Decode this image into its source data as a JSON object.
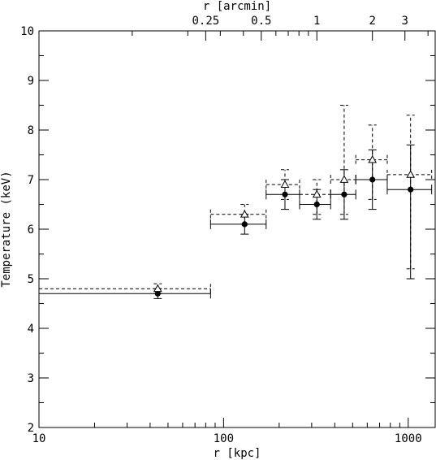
{
  "chart_data": {
    "type": "scatter",
    "title": "",
    "xlabel": "r [kpc]",
    "ylabel": "Temperature (keV)",
    "x2label": "r [arcmin]",
    "xscale": "log",
    "xlim": [
      10,
      1400
    ],
    "ylim": [
      2,
      10
    ],
    "grid": false,
    "x_major_ticks": [
      10,
      100,
      1000
    ],
    "x_major_tick_labels": [
      "10",
      "100",
      "1000"
    ],
    "y_ticks": [
      2,
      3,
      4,
      5,
      6,
      7,
      8,
      9,
      10
    ],
    "y_tick_labels": [
      "2",
      "3",
      "4",
      "5",
      "6",
      "7",
      "8",
      "9",
      "10"
    ],
    "x2_tick_labels": [
      "0.25",
      "0.5",
      "1",
      "2",
      "3"
    ],
    "x2_tick_values_arcmin": [
      0.25,
      0.5,
      1,
      2,
      3
    ],
    "series": [
      {
        "marker": "filled-circle",
        "linestyle": "solid",
        "points": [
          {
            "x": 44,
            "x_lo": 10,
            "x_hi": 85,
            "y": 4.7,
            "y_lo": 4.6,
            "y_hi": 4.8
          },
          {
            "x": 130,
            "x_lo": 85,
            "x_hi": 170,
            "y": 6.1,
            "y_lo": 5.9,
            "y_hi": 6.3
          },
          {
            "x": 215,
            "x_lo": 170,
            "x_hi": 258,
            "y": 6.7,
            "y_lo": 6.4,
            "y_hi": 7.0
          },
          {
            "x": 320,
            "x_lo": 258,
            "x_hi": 380,
            "y": 6.5,
            "y_lo": 6.2,
            "y_hi": 6.8
          },
          {
            "x": 450,
            "x_lo": 380,
            "x_hi": 520,
            "y": 6.7,
            "y_lo": 6.2,
            "y_hi": 7.2
          },
          {
            "x": 640,
            "x_lo": 520,
            "x_hi": 770,
            "y": 7.0,
            "y_lo": 6.4,
            "y_hi": 7.6
          },
          {
            "x": 1030,
            "x_lo": 770,
            "x_hi": 1340,
            "y": 6.8,
            "y_lo": 5.0,
            "y_hi": 7.7
          }
        ]
      },
      {
        "marker": "open-triangle",
        "linestyle": "dashed",
        "points": [
          {
            "x": 44,
            "x_lo": 10,
            "x_hi": 85,
            "y": 4.8,
            "y_lo": 4.7,
            "y_hi": 4.9
          },
          {
            "x": 130,
            "x_lo": 85,
            "x_hi": 170,
            "y": 6.3,
            "y_lo": 6.1,
            "y_hi": 6.5
          },
          {
            "x": 215,
            "x_lo": 170,
            "x_hi": 258,
            "y": 6.9,
            "y_lo": 6.6,
            "y_hi": 7.2
          },
          {
            "x": 320,
            "x_lo": 258,
            "x_hi": 380,
            "y": 6.7,
            "y_lo": 6.3,
            "y_hi": 7.0
          },
          {
            "x": 450,
            "x_lo": 380,
            "x_hi": 520,
            "y": 7.0,
            "y_lo": 6.3,
            "y_hi": 8.5
          },
          {
            "x": 640,
            "x_lo": 520,
            "x_hi": 770,
            "y": 7.4,
            "y_lo": 6.6,
            "y_hi": 8.1
          },
          {
            "x": 1030,
            "x_lo": 770,
            "x_hi": 1340,
            "y": 7.1,
            "y_lo": 5.2,
            "y_hi": 8.3
          }
        ]
      }
    ]
  }
}
